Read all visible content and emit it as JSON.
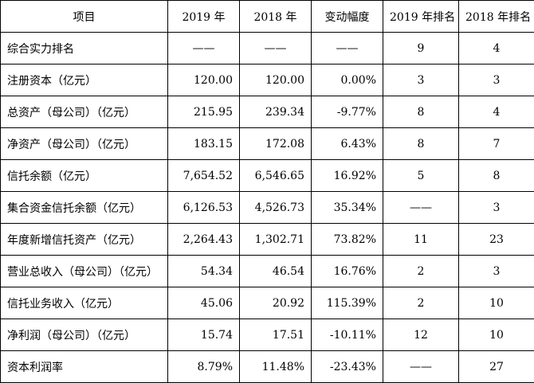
{
  "table": {
    "headers": [
      "项目",
      "2019 年",
      "2018 年",
      "变动幅度",
      "2019 年排名",
      "2018 年排名"
    ],
    "rows": [
      [
        "综合实力排名",
        "——",
        "——",
        "——",
        "9",
        "4"
      ],
      [
        "注册资本（亿元）",
        "120.00",
        "120.00",
        "0.00%",
        "3",
        "3"
      ],
      [
        "总资产（母公司）（亿元）",
        "215.95",
        "239.34",
        "-9.77%",
        "8",
        "4"
      ],
      [
        "净资产（母公司）（亿元）",
        "183.15",
        "172.08",
        "6.43%",
        "8",
        "7"
      ],
      [
        "信托余额（亿元）",
        "7,654.52",
        "6,546.65",
        "16.92%",
        "5",
        "8"
      ],
      [
        "集合资金信托余额（亿元）",
        "6,126.53",
        "4,526.73",
        "35.34%",
        "——",
        "3"
      ],
      [
        "年度新增信托资产（亿元）",
        "2,264.43",
        "1,302.71",
        "73.82%",
        "11",
        "23"
      ],
      [
        "营业总收入（母公司）（亿元）",
        "54.34",
        "46.54",
        "16.76%",
        "2",
        "3"
      ],
      [
        "信托业务收入（亿元）",
        "45.06",
        "20.92",
        "115.39%",
        "2",
        "10"
      ],
      [
        "净利润（母公司）（亿元）",
        "15.74",
        "17.51",
        "-10.11%",
        "12",
        "10"
      ],
      [
        "资本利润率",
        "8.79%",
        "11.48%",
        "-23.43%",
        "——",
        "27"
      ]
    ]
  }
}
